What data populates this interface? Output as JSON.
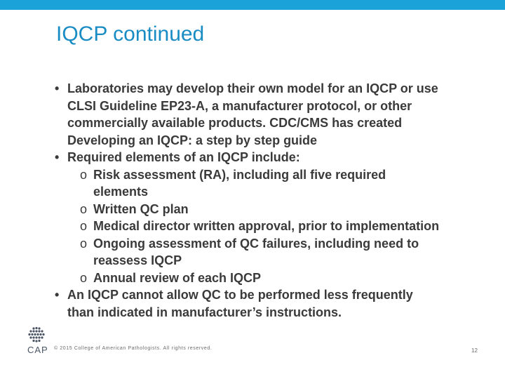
{
  "slide": {
    "title": "IQCP continued",
    "bullets": [
      {
        "marker": "•",
        "lines": [
          "Laboratories may develop their own model for an IQCP or use",
          "CLSI Guideline EP23-A, a manufacturer protocol, or other",
          "commercially available products. CDC/CMS has created",
          "Developing an IQCP: a step by step guide"
        ]
      },
      {
        "marker": "•",
        "lines": [
          "Required elements of an IQCP include:"
        ],
        "subitems": [
          {
            "marker": "o",
            "lines": [
              "Risk assessment (RA), including all five required",
              "elements"
            ]
          },
          {
            "marker": "o",
            "lines": [
              "Written QC plan"
            ]
          },
          {
            "marker": "o",
            "lines": [
              "Medical director written approval, prior to implementation"
            ]
          },
          {
            "marker": "o",
            "lines": [
              "Ongoing assessment of QC failures, including need to",
              "reassess IQCP"
            ]
          },
          {
            "marker": "o",
            "lines": [
              "Annual review of each IQCP"
            ]
          }
        ]
      },
      {
        "marker": "•",
        "lines": [
          "An IQCP cannot allow QC to be performed less frequently",
          "than indicated in manufacturer’s instructions."
        ]
      }
    ]
  },
  "footer": {
    "logo_text": "CAP",
    "copyright": "© 2015 College of American Pathologists. All rights reserved.",
    "page_number": "12"
  },
  "colors": {
    "accent": "#1ba3d9",
    "title": "#1a8cc4",
    "body_text": "#3a3a3a"
  }
}
